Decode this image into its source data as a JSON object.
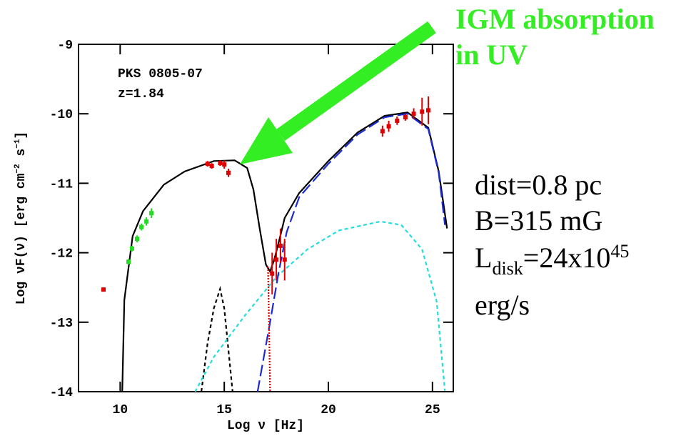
{
  "chart_data": {
    "type": "sed",
    "source": "PKS 0805-07",
    "redshift_label": "z=1.84",
    "xlabel": "Log ν [Hz]",
    "ylabel": [
      "Log νF(ν) [erg cm",
      "−2",
      " s",
      "−1",
      "]"
    ],
    "annotation": [
      "IGM absorption",
      "in UV"
    ],
    "params": {
      "dist": "dist=0.8 pc",
      "B": "B=315 mG",
      "L": [
        "L",
        "disk",
        "=24x10",
        "45"
      ],
      "unit": "erg/s"
    },
    "xlim": [
      8,
      26
    ],
    "ylim": [
      -14,
      -9
    ],
    "xticks": [
      10,
      15,
      20,
      25
    ],
    "yticks": [
      -9,
      -10,
      -11,
      -12,
      -13,
      -14
    ],
    "lines": [
      {
        "color": "#000000",
        "dash": "none",
        "x": [
          10.1,
          10.2,
          10.6,
          11.1,
          12.1,
          13.1,
          14.5,
          15.5,
          16.1,
          16.4,
          16.7,
          17.0,
          17.2,
          17.4,
          17.7,
          17.9,
          18.6,
          20,
          21.4,
          22.7,
          23.8,
          24.8,
          25.3,
          25.7
        ],
        "values": [
          -14,
          -12.68,
          -11.76,
          -11.4,
          -11.02,
          -10.83,
          -10.68,
          -10.67,
          -10.78,
          -11.09,
          -11.65,
          -12.17,
          -12.27,
          -12.1,
          -11.75,
          -11.5,
          -11.14,
          -10.68,
          -10.27,
          -10.03,
          -9.98,
          -10.2,
          -10.83,
          -11.65
        ]
      },
      {
        "color": "#000000",
        "dash": "5 4",
        "x": [
          13.9,
          14.2,
          14.5,
          14.8,
          15.0,
          15.2,
          15.4
        ],
        "values": [
          -14,
          -13.3,
          -12.8,
          -12.52,
          -12.8,
          -13.4,
          -14
        ]
      },
      {
        "color": "#22dddd",
        "dash": "5 4",
        "x": [
          13.6,
          14.5,
          16,
          17.5,
          19,
          20.5,
          22.5,
          23.5,
          24.5,
          25.2,
          25.6
        ],
        "values": [
          -14,
          -13.5,
          -12.9,
          -12.35,
          -11.95,
          -11.68,
          -11.55,
          -11.6,
          -11.95,
          -12.7,
          -14
        ]
      },
      {
        "color": "#1a2bd6",
        "dash": "16 6",
        "x": [
          16.6,
          17.2,
          17.6,
          18.0,
          18.6,
          20,
          21.4,
          22.7,
          23.8,
          24.8,
          25.3,
          25.6
        ],
        "values": [
          -14,
          -13.0,
          -12.3,
          -11.7,
          -11.2,
          -10.72,
          -10.3,
          -10.05,
          -10.0,
          -10.22,
          -10.85,
          -11.6
        ]
      },
      {
        "color": "#e00000",
        "dash": "2 2",
        "x": [
          17.1,
          17.15,
          17.2
        ],
        "values": [
          -12.2,
          -13,
          -14
        ]
      }
    ],
    "points": [
      {
        "color": "#22dd22",
        "x": [
          10.4,
          10.57,
          10.81,
          11.02,
          11.26,
          11.5
        ],
        "values": [
          -12.13,
          -11.94,
          -11.8,
          -11.63,
          -11.55,
          -11.43
        ],
        "errors": [
          0.04,
          0.04,
          0.05,
          0.05,
          0.06,
          0.07
        ]
      },
      {
        "color": "#e00000",
        "x": [
          9.2,
          14.2,
          14.4,
          14.8,
          15.0,
          15.2,
          17.3,
          17.5,
          17.7,
          17.9,
          22.6,
          22.9,
          23.3,
          23.7,
          24.1,
          24.5,
          24.8
        ],
        "values": [
          -12.53,
          -10.72,
          -10.75,
          -10.71,
          -10.73,
          -10.85,
          -12.3,
          -12.1,
          -11.9,
          -12.1,
          -10.25,
          -10.18,
          -10.1,
          -10.05,
          -10.0,
          -9.97,
          -9.95
        ],
        "errors": [
          0.02,
          0.04,
          0.04,
          0.04,
          0.06,
          0.06,
          0.3,
          0.3,
          0.25,
          0.3,
          0.08,
          0.08,
          0.06,
          0.05,
          0.08,
          0.2,
          0.2
        ]
      }
    ]
  }
}
